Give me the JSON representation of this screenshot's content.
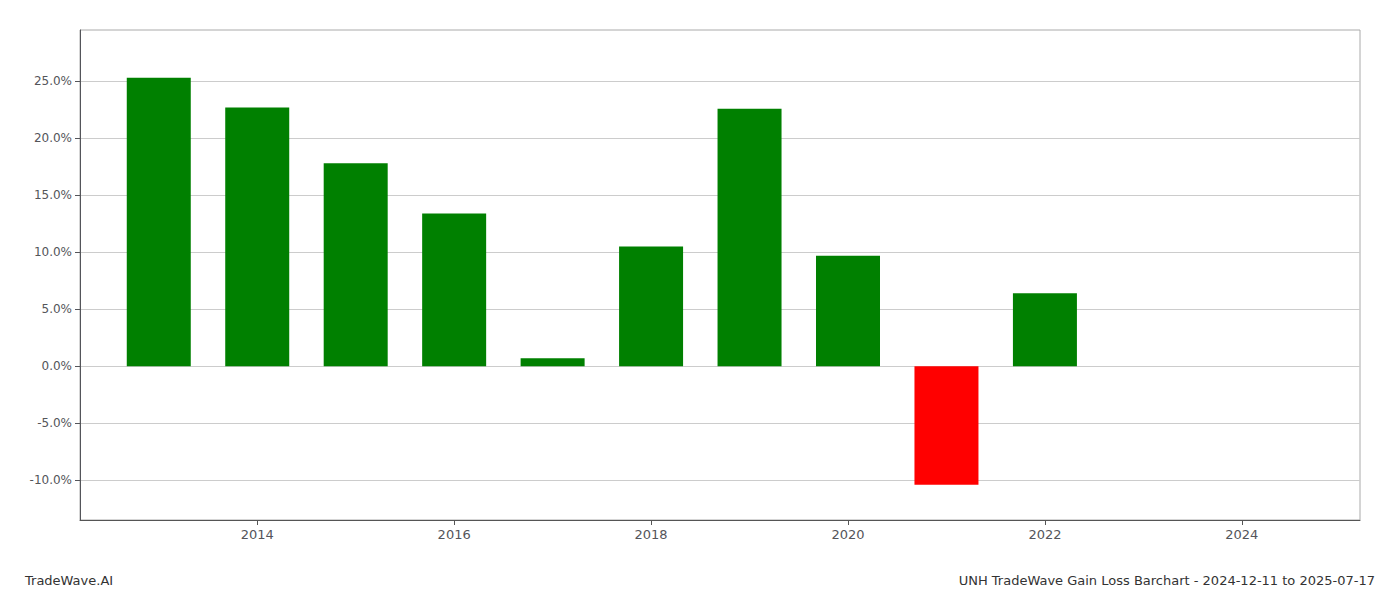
{
  "chart_data": {
    "type": "bar",
    "title": "UNH TradeWave Gain Loss Barchart - 2024-12-11 to 2025-07-17",
    "annotations": [
      "TradeWave.AI"
    ],
    "x": [
      2013,
      2014,
      2015,
      2016,
      2017,
      2018,
      2019,
      2020,
      2021,
      2022,
      2023
    ],
    "values": [
      0.253,
      0.227,
      0.178,
      0.134,
      0.007,
      0.105,
      0.226,
      0.097,
      -0.104,
      0.064,
      0.0
    ],
    "colors": [
      "#008000",
      "#008000",
      "#008000",
      "#008000",
      "#008000",
      "#008000",
      "#008000",
      "#008000",
      "#ff0000",
      "#008000",
      "#008000"
    ],
    "xlim": [
      2012.2,
      2025.2
    ],
    "xticks": [
      2014,
      2016,
      2018,
      2020,
      2022,
      2024
    ],
    "ylim": [
      -0.135,
      0.295
    ],
    "yticks": [
      {
        "value": -0.1,
        "label": "-10.0%"
      },
      {
        "value": -0.05,
        "label": "-5.0%"
      },
      {
        "value": 0.0,
        "label": "0.0%"
      },
      {
        "value": 0.05,
        "label": "5.0%"
      },
      {
        "value": 0.1,
        "label": "10.0%"
      },
      {
        "value": 0.15,
        "label": "15.0%"
      },
      {
        "value": 0.2,
        "label": "20.0%"
      },
      {
        "value": 0.25,
        "label": "25.0%"
      }
    ],
    "grid": true
  }
}
